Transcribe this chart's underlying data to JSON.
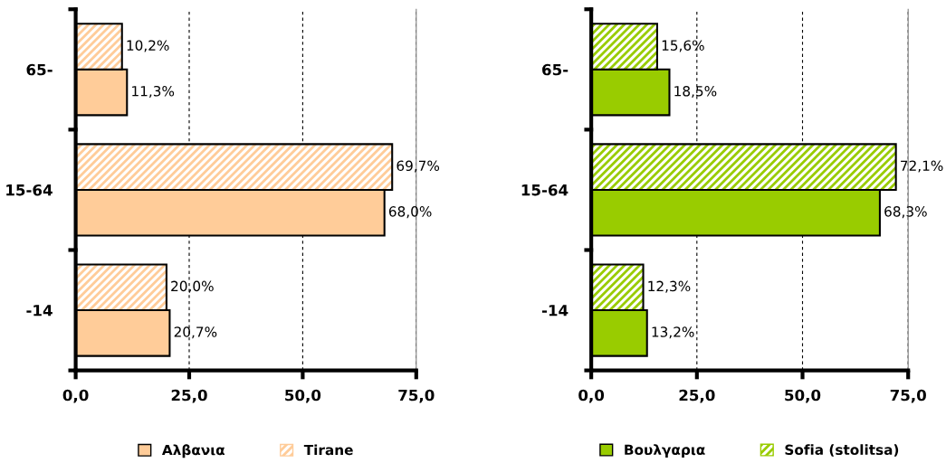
{
  "chart_data": [
    {
      "type": "bar",
      "orientation": "horizontal",
      "categories": [
        "65-",
        "15-64",
        "-14"
      ],
      "xlim": [
        0,
        75
      ],
      "xticks": [
        {
          "value": 0,
          "label": "0,0"
        },
        {
          "value": 25,
          "label": "25,0"
        },
        {
          "value": 50,
          "label": "50,0"
        },
        {
          "value": 75,
          "label": "75,0"
        }
      ],
      "grid": "x",
      "legend": "bottom",
      "series": [
        {
          "name": "Αλβανια",
          "color": "#ffcc99",
          "values": [
            11.3,
            68.0,
            20.7
          ],
          "value_labels": [
            "11,3%",
            "68,0%",
            "20,7%"
          ]
        },
        {
          "name": "Tirane",
          "color": "#ffcc99",
          "values": [
            10.2,
            69.7,
            20.0
          ],
          "value_labels": [
            "10,2%",
            "69,7%",
            "20,0%"
          ]
        }
      ]
    },
    {
      "type": "bar",
      "orientation": "horizontal",
      "categories": [
        "65-",
        "15-64",
        "-14"
      ],
      "xlim": [
        0,
        75
      ],
      "xticks": [
        {
          "value": 0,
          "label": "0,0"
        },
        {
          "value": 25,
          "label": "25,0"
        },
        {
          "value": 50,
          "label": "50,0"
        },
        {
          "value": 75,
          "label": "75,0"
        }
      ],
      "grid": "x",
      "legend": "bottom",
      "series": [
        {
          "name": "Βουλγαρια",
          "color": "#99cc00",
          "values": [
            18.5,
            68.3,
            13.2
          ],
          "value_labels": [
            "18,5%",
            "68,3%",
            "13,2%"
          ]
        },
        {
          "name": "Sofia (stolitsa)",
          "color": "#99cc00",
          "values": [
            15.6,
            72.1,
            12.3
          ],
          "value_labels": [
            "15,6%",
            "72,1%",
            "12,3%"
          ]
        }
      ]
    }
  ]
}
